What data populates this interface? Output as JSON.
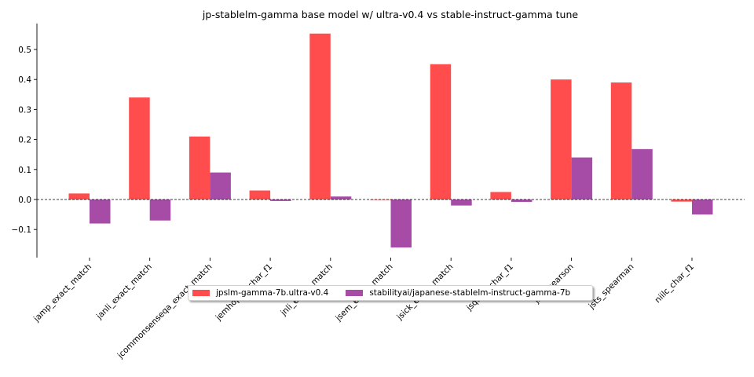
{
  "chart_data": {
    "type": "bar",
    "title": "jp-stablelm-gamma base model w/ ultra-v0.4 vs stable-instruct-gamma tune",
    "xlabel": "",
    "ylabel": "",
    "categories": [
      "jamp_exact_match",
      "janli_exact_match",
      "jcommonsenseqa_exact_match",
      "jemhopqa_char_f1",
      "jnli_exact_match",
      "jsem_exact_match",
      "jsick_exact_match",
      "jsquad_char_f1",
      "jsts_pearson",
      "jsts_spearman",
      "niilc_char_f1"
    ],
    "series": [
      {
        "name": "jpslm-gamma-7b.ultra-v0.4",
        "color": "#ff4c4c",
        "values": [
          0.02,
          0.34,
          0.21,
          0.03,
          0.553,
          0.0,
          0.451,
          0.025,
          0.4,
          0.39,
          -0.007
        ]
      },
      {
        "name": "stabilityai/japanese-stablelm-instruct-gamma-7b",
        "color": "#a64ca6",
        "values": [
          -0.08,
          -0.07,
          0.09,
          -0.005,
          0.01,
          -0.16,
          -0.02,
          -0.008,
          0.14,
          0.168,
          -0.05
        ]
      }
    ],
    "ylim": [
      -0.195,
      0.585
    ],
    "yticks": [
      -0.1,
      0.0,
      0.1,
      0.2,
      0.3,
      0.4,
      0.5
    ],
    "ytick_labels": [
      "−0.1",
      "0.0",
      "0.1",
      "0.2",
      "0.3",
      "0.4",
      "0.5"
    ],
    "zero_line": true,
    "grid": false,
    "legend_position": "lower-center"
  }
}
